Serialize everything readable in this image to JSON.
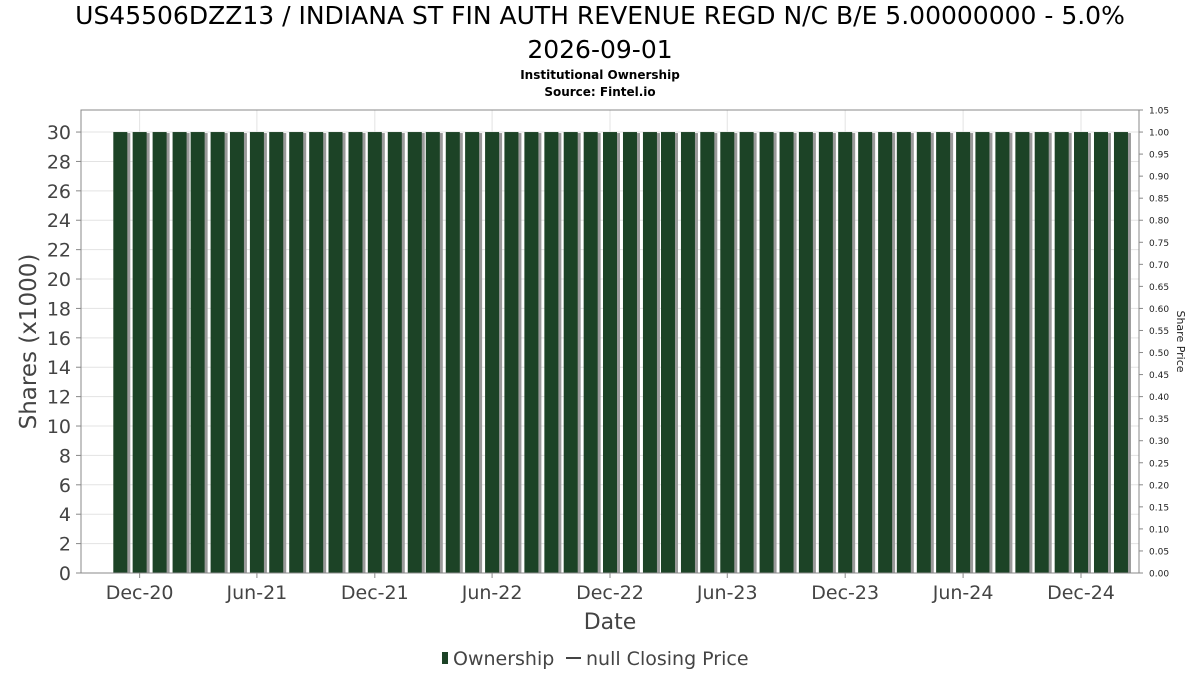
{
  "title_line1": "US45506DZZ13 / INDIANA ST FIN AUTH REVENUE REGD N/C B/E 5.00000000 - 5.0%",
  "title_line2": "2026-09-01",
  "subtitle": "Institutional Ownership",
  "source": "Source: Fintel.io",
  "colors": {
    "bar": "#1c4326",
    "bar_shadow": "#9a9a9a",
    "grid": "#e3e3e3",
    "axis_text": "#444444"
  },
  "chart_data": {
    "type": "bar",
    "xlabel": "Date",
    "ylabel": "Shares (x1000)",
    "y2label": "Share Price",
    "ylim": [
      0,
      31.5
    ],
    "y_ticks": [
      0,
      2,
      4,
      6,
      8,
      10,
      12,
      14,
      16,
      18,
      20,
      22,
      24,
      26,
      28,
      30
    ],
    "y2lim": [
      0,
      1.05
    ],
    "y2_ticks": [
      "0.00",
      "0.05",
      "0.10",
      "0.15",
      "0.20",
      "0.25",
      "0.30",
      "0.35",
      "0.40",
      "0.45",
      "0.50",
      "0.55",
      "0.60",
      "0.65",
      "0.70",
      "0.75",
      "0.80",
      "0.85",
      "0.90",
      "0.95",
      "1.00",
      "1.05"
    ],
    "x_start": "2020-09-01",
    "x_end": "2025-03-01",
    "x_ticks": [
      {
        "label": "Dec-20",
        "date": "2020-12-01"
      },
      {
        "label": "Jun-21",
        "date": "2021-06-01"
      },
      {
        "label": "Dec-21",
        "date": "2021-12-01"
      },
      {
        "label": "Jun-22",
        "date": "2022-06-01"
      },
      {
        "label": "Dec-22",
        "date": "2022-12-01"
      },
      {
        "label": "Jun-23",
        "date": "2023-06-01"
      },
      {
        "label": "Dec-23",
        "date": "2023-12-01"
      },
      {
        "label": "Jun-24",
        "date": "2024-06-01"
      },
      {
        "label": "Dec-24",
        "date": "2024-12-01"
      }
    ],
    "grid": true,
    "legend_position": "bottom",
    "series": [
      {
        "name": "Ownership",
        "type": "bar",
        "points": [
          {
            "date": "2020-11-01",
            "value": 30
          },
          {
            "date": "2020-12-01",
            "value": 30
          },
          {
            "date": "2021-01-01",
            "value": 30
          },
          {
            "date": "2021-02-01",
            "value": 30
          },
          {
            "date": "2021-03-01",
            "value": 30
          },
          {
            "date": "2021-04-01",
            "value": 30
          },
          {
            "date": "2021-05-01",
            "value": 30
          },
          {
            "date": "2021-06-01",
            "value": 30
          },
          {
            "date": "2021-07-01",
            "value": 30
          },
          {
            "date": "2021-08-01",
            "value": 30
          },
          {
            "date": "2021-09-01",
            "value": 30
          },
          {
            "date": "2021-10-01",
            "value": 30
          },
          {
            "date": "2021-11-01",
            "value": 30
          },
          {
            "date": "2021-12-01",
            "value": 30
          },
          {
            "date": "2022-01-01",
            "value": 30
          },
          {
            "date": "2022-02-01",
            "value": 30
          },
          {
            "date": "2022-03-01",
            "value": 30
          },
          {
            "date": "2022-04-01",
            "value": 30
          },
          {
            "date": "2022-05-01",
            "value": 30
          },
          {
            "date": "2022-06-01",
            "value": 30
          },
          {
            "date": "2022-07-01",
            "value": 30
          },
          {
            "date": "2022-08-01",
            "value": 30
          },
          {
            "date": "2022-09-01",
            "value": 30
          },
          {
            "date": "2022-10-01",
            "value": 30
          },
          {
            "date": "2022-11-01",
            "value": 30
          },
          {
            "date": "2022-12-01",
            "value": 30
          },
          {
            "date": "2023-01-01",
            "value": 30
          },
          {
            "date": "2023-02-01",
            "value": 30
          },
          {
            "date": "2023-03-01",
            "value": 30
          },
          {
            "date": "2023-04-01",
            "value": 30
          },
          {
            "date": "2023-05-01",
            "value": 30
          },
          {
            "date": "2023-06-01",
            "value": 30
          },
          {
            "date": "2023-07-01",
            "value": 30
          },
          {
            "date": "2023-08-01",
            "value": 30
          },
          {
            "date": "2023-09-01",
            "value": 30
          },
          {
            "date": "2023-10-01",
            "value": 30
          },
          {
            "date": "2023-11-01",
            "value": 30
          },
          {
            "date": "2023-12-01",
            "value": 30
          },
          {
            "date": "2024-01-01",
            "value": 30
          },
          {
            "date": "2024-02-01",
            "value": 30
          },
          {
            "date": "2024-03-01",
            "value": 30
          },
          {
            "date": "2024-04-01",
            "value": 30
          },
          {
            "date": "2024-05-01",
            "value": 30
          },
          {
            "date": "2024-06-01",
            "value": 30
          },
          {
            "date": "2024-07-01",
            "value": 30
          },
          {
            "date": "2024-08-01",
            "value": 30
          },
          {
            "date": "2024-09-01",
            "value": 30
          },
          {
            "date": "2024-10-01",
            "value": 30
          },
          {
            "date": "2024-11-01",
            "value": 30
          },
          {
            "date": "2024-12-01",
            "value": 30
          },
          {
            "date": "2025-01-01",
            "value": 30
          },
          {
            "date": "2025-02-01",
            "value": 30
          }
        ]
      },
      {
        "name": "null Closing Price",
        "type": "line",
        "points": []
      }
    ]
  }
}
